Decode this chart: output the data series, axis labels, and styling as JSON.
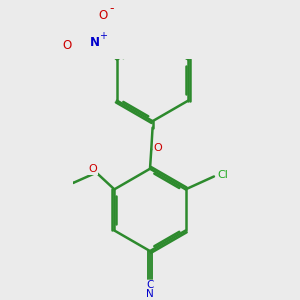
{
  "background_color": "#ebebeb",
  "bond_color": "#2d8a2d",
  "atom_colors": {
    "O": "#cc0000",
    "N": "#0000cc",
    "Cl": "#22aa22",
    "C": "#2d8a2d",
    "N_nitrile": "#0000cc"
  },
  "bond_width": 1.8,
  "figsize": [
    3.0,
    3.0
  ],
  "dpi": 100
}
